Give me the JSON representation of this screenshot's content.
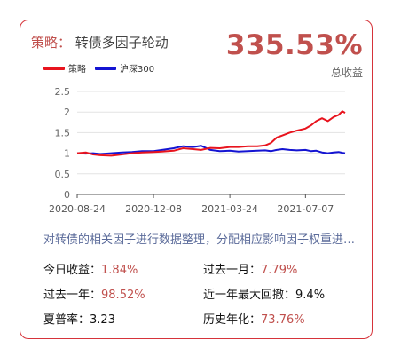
{
  "header": {
    "strategy_prefix": "策略：",
    "strategy_name": "转债多因子轮动",
    "total_return": "335.53%",
    "total_return_label": "总收益"
  },
  "legend": [
    {
      "label": "策略",
      "color": "#e8141e"
    },
    {
      "label": "沪深300",
      "color": "#1414d2"
    }
  ],
  "description": "对转债的相关因子进行数据整理，分配相应影响因子权重进行轮动",
  "stats": [
    {
      "label": "今日收益：",
      "value": "1.84%",
      "red": true
    },
    {
      "label": "过去一月：",
      "value": "7.79%",
      "red": true
    },
    {
      "label": "过去一年：",
      "value": "98.52%",
      "red": true
    },
    {
      "label": "近一年最大回撤：",
      "value": "9.4%",
      "red": false
    },
    {
      "label": "夏普率：",
      "value": "3.23",
      "red": false
    },
    {
      "label": "历史年化：",
      "value": "73.76%",
      "red": true
    }
  ],
  "chart_data": {
    "type": "line",
    "ylim": [
      0,
      2.5
    ],
    "y_ticks": [
      "0",
      "0.5",
      "1",
      "1.5",
      "2",
      "2.5"
    ],
    "x_ticks": [
      "2020-08-24",
      "2020-12-08",
      "2021-03-24",
      "2021-07-07"
    ],
    "x_range": [
      "2020-08-24",
      "2021-08-31"
    ],
    "grid": "horizontal",
    "series": [
      {
        "name": "策略",
        "color": "#e8141e",
        "points": [
          [
            "2020-08-24",
            1.0
          ],
          [
            "2020-09-05",
            1.02
          ],
          [
            "2020-09-15",
            0.97
          ],
          [
            "2020-09-25",
            0.95
          ],
          [
            "2020-10-10",
            0.94
          ],
          [
            "2020-10-25",
            0.97
          ],
          [
            "2020-11-08",
            1.0
          ],
          [
            "2020-11-22",
            1.02
          ],
          [
            "2020-12-08",
            1.03
          ],
          [
            "2020-12-20",
            1.04
          ],
          [
            "2021-01-05",
            1.06
          ],
          [
            "2021-01-18",
            1.12
          ],
          [
            "2021-02-01",
            1.1
          ],
          [
            "2021-02-12",
            1.08
          ],
          [
            "2021-02-25",
            1.13
          ],
          [
            "2021-03-10",
            1.12
          ],
          [
            "2021-03-24",
            1.15
          ],
          [
            "2021-04-05",
            1.15
          ],
          [
            "2021-04-18",
            1.17
          ],
          [
            "2021-05-01",
            1.17
          ],
          [
            "2021-05-12",
            1.19
          ],
          [
            "2021-05-20",
            1.25
          ],
          [
            "2021-05-28",
            1.38
          ],
          [
            "2021-06-05",
            1.43
          ],
          [
            "2021-06-15",
            1.5
          ],
          [
            "2021-06-25",
            1.55
          ],
          [
            "2021-07-07",
            1.6
          ],
          [
            "2021-07-15",
            1.68
          ],
          [
            "2021-07-22",
            1.78
          ],
          [
            "2021-07-30",
            1.85
          ],
          [
            "2021-08-07",
            1.78
          ],
          [
            "2021-08-15",
            1.88
          ],
          [
            "2021-08-22",
            1.93
          ],
          [
            "2021-08-27",
            2.02
          ],
          [
            "2021-08-31",
            1.98
          ]
        ]
      },
      {
        "name": "沪深300",
        "color": "#1414d2",
        "points": [
          [
            "2020-08-24",
            1.0
          ],
          [
            "2020-09-05",
            0.99
          ],
          [
            "2020-09-15",
            1.0
          ],
          [
            "2020-09-25",
            0.98
          ],
          [
            "2020-10-10",
            1.0
          ],
          [
            "2020-10-25",
            1.02
          ],
          [
            "2020-11-08",
            1.03
          ],
          [
            "2020-11-22",
            1.05
          ],
          [
            "2020-12-08",
            1.05
          ],
          [
            "2020-12-20",
            1.08
          ],
          [
            "2021-01-05",
            1.12
          ],
          [
            "2021-01-18",
            1.17
          ],
          [
            "2021-02-01",
            1.15
          ],
          [
            "2021-02-12",
            1.18
          ],
          [
            "2021-02-25",
            1.08
          ],
          [
            "2021-03-10",
            1.05
          ],
          [
            "2021-03-24",
            1.06
          ],
          [
            "2021-04-05",
            1.04
          ],
          [
            "2021-04-18",
            1.05
          ],
          [
            "2021-05-01",
            1.06
          ],
          [
            "2021-05-12",
            1.07
          ],
          [
            "2021-05-20",
            1.05
          ],
          [
            "2021-05-28",
            1.08
          ],
          [
            "2021-06-05",
            1.1
          ],
          [
            "2021-06-15",
            1.08
          ],
          [
            "2021-06-25",
            1.07
          ],
          [
            "2021-07-07",
            1.08
          ],
          [
            "2021-07-15",
            1.05
          ],
          [
            "2021-07-22",
            1.06
          ],
          [
            "2021-07-30",
            1.02
          ],
          [
            "2021-08-07",
            1.0
          ],
          [
            "2021-08-15",
            1.02
          ],
          [
            "2021-08-22",
            1.03
          ],
          [
            "2021-08-27",
            1.01
          ],
          [
            "2021-08-31",
            1.0
          ]
        ]
      }
    ]
  }
}
